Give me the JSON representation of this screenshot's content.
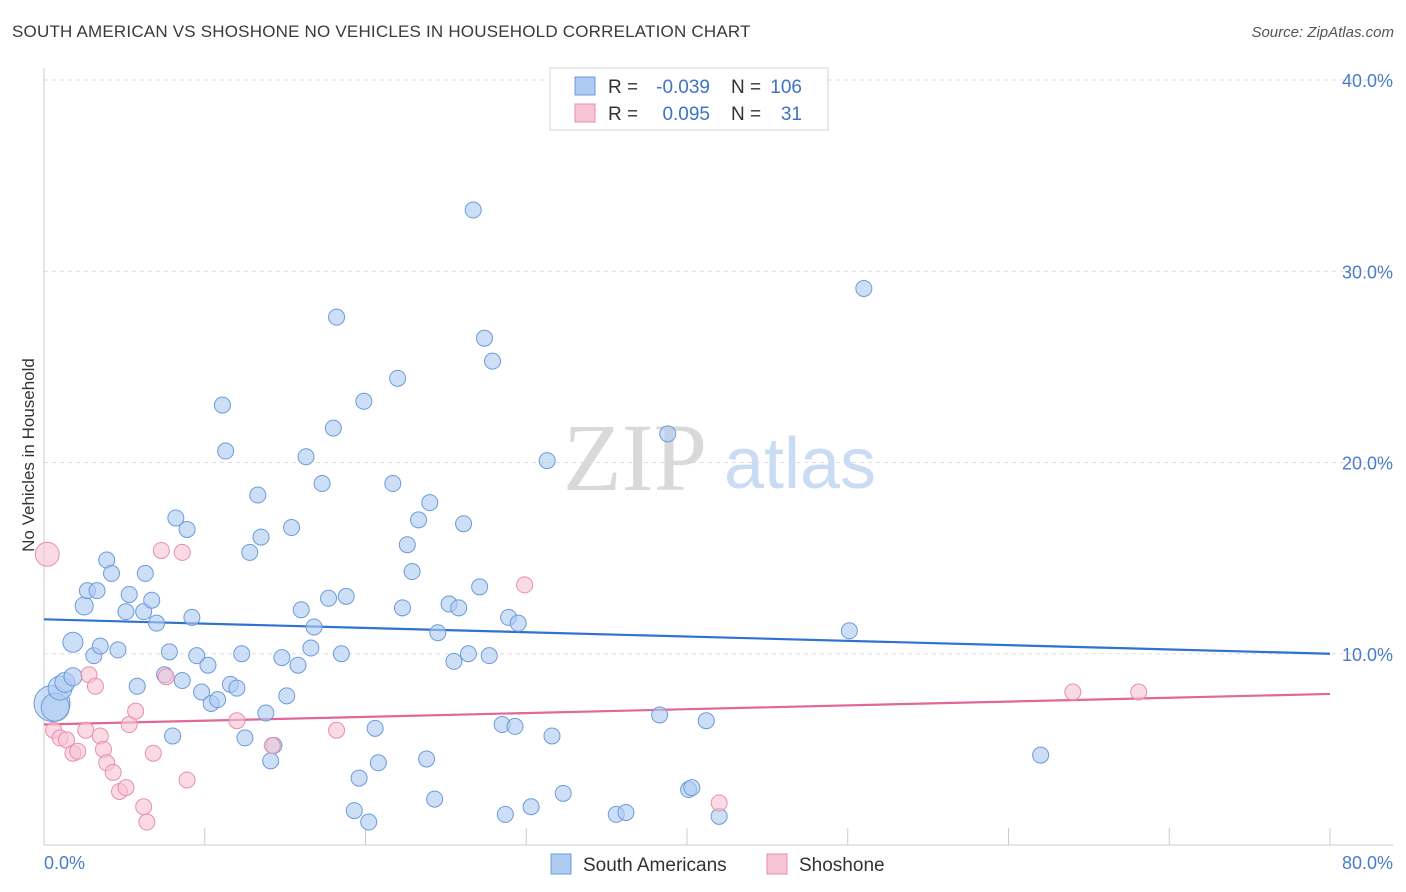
{
  "title": "SOUTH AMERICAN VS SHOSHONE NO VEHICLES IN HOUSEHOLD CORRELATION CHART",
  "source": "Source: ZipAtlas.com",
  "watermark": {
    "zip": "ZIP",
    "atlas": "atlas"
  },
  "colors": {
    "blue_fill": "#aecbf2",
    "blue_stroke": "#6c9bd9",
    "blue_line": "#2f72cf",
    "pink_fill": "#f7c4d4",
    "pink_stroke": "#e98eab",
    "pink_line": "#e0679a",
    "axis_text": "#4a7cc9"
  },
  "legend": {
    "r_label": "R =",
    "n_label": "N =",
    "series": [
      {
        "name": "South Americans",
        "r": "-0.039",
        "n": "106"
      },
      {
        "name": "Shoshone",
        "r": "0.095",
        "n": "31"
      }
    ]
  },
  "chart_data": {
    "type": "scatter",
    "title": "SOUTH AMERICAN VS SHOSHONE NO VEHICLES IN HOUSEHOLD CORRELATION CHART",
    "xlabel": "",
    "ylabel": "No Vehicles in Household",
    "xlim": [
      0,
      80
    ],
    "ylim": [
      0,
      40
    ],
    "x_tick_labels": [
      "0.0%",
      "80.0%"
    ],
    "y_tick_labels": [
      "10.0%",
      "20.0%",
      "30.0%",
      "40.0%"
    ],
    "y_ticks": [
      10,
      20,
      30,
      40
    ],
    "grid": true,
    "series": [
      {
        "name": "South Americans",
        "trend": {
          "x": [
            0,
            80
          ],
          "y": [
            11.8,
            10.0
          ]
        },
        "points": [
          [
            0.5,
            7.4,
            18
          ],
          [
            0.7,
            7.2,
            14
          ],
          [
            1.0,
            8.2,
            12
          ],
          [
            1.3,
            8.5,
            10
          ],
          [
            1.8,
            8.8,
            9
          ],
          [
            1.8,
            10.6,
            10
          ],
          [
            2.5,
            12.5,
            9
          ],
          [
            2.7,
            13.3,
            8
          ],
          [
            3.1,
            9.9,
            8
          ],
          [
            3.3,
            13.3,
            8
          ],
          [
            3.5,
            10.4,
            8
          ],
          [
            3.9,
            14.9,
            8
          ],
          [
            4.2,
            14.2,
            8
          ],
          [
            4.6,
            10.2,
            8
          ],
          [
            5.1,
            12.2,
            8
          ],
          [
            5.3,
            13.1,
            8
          ],
          [
            5.8,
            8.3,
            8
          ],
          [
            6.2,
            12.2,
            8
          ],
          [
            6.3,
            14.2,
            8
          ],
          [
            6.7,
            12.8,
            8
          ],
          [
            7.0,
            11.6,
            8
          ],
          [
            7.5,
            8.9,
            8
          ],
          [
            7.8,
            10.1,
            8
          ],
          [
            8.0,
            5.7,
            8
          ],
          [
            8.2,
            17.1,
            8
          ],
          [
            8.6,
            8.6,
            8
          ],
          [
            8.9,
            16.5,
            8
          ],
          [
            9.2,
            11.9,
            8
          ],
          [
            9.5,
            9.9,
            8
          ],
          [
            9.8,
            8.0,
            8
          ],
          [
            10.2,
            9.4,
            8
          ],
          [
            10.4,
            7.4,
            8
          ],
          [
            10.8,
            7.6,
            8
          ],
          [
            11.1,
            23.0,
            8
          ],
          [
            11.3,
            20.6,
            8
          ],
          [
            11.6,
            8.4,
            8
          ],
          [
            12.0,
            8.2,
            8
          ],
          [
            12.3,
            10.0,
            8
          ],
          [
            12.5,
            5.6,
            8
          ],
          [
            12.8,
            15.3,
            8
          ],
          [
            13.3,
            18.3,
            8
          ],
          [
            13.5,
            16.1,
            8
          ],
          [
            13.8,
            6.9,
            8
          ],
          [
            14.1,
            4.4,
            8
          ],
          [
            14.3,
            5.2,
            8
          ],
          [
            14.8,
            9.8,
            8
          ],
          [
            15.1,
            7.8,
            8
          ],
          [
            15.4,
            16.6,
            8
          ],
          [
            15.8,
            9.4,
            8
          ],
          [
            16.0,
            12.3,
            8
          ],
          [
            16.3,
            20.3,
            8
          ],
          [
            16.6,
            10.3,
            8
          ],
          [
            16.8,
            11.4,
            8
          ],
          [
            17.3,
            18.9,
            8
          ],
          [
            17.7,
            12.9,
            8
          ],
          [
            18.0,
            21.8,
            8
          ],
          [
            18.2,
            27.6,
            8
          ],
          [
            18.5,
            10.0,
            8
          ],
          [
            18.8,
            13.0,
            8
          ],
          [
            19.3,
            1.8,
            8
          ],
          [
            19.6,
            3.5,
            8
          ],
          [
            19.9,
            23.2,
            8
          ],
          [
            20.2,
            1.2,
            8
          ],
          [
            20.6,
            6.1,
            8
          ],
          [
            20.8,
            4.3,
            8
          ],
          [
            21.7,
            18.9,
            8
          ],
          [
            22.0,
            24.4,
            8
          ],
          [
            22.3,
            12.4,
            8
          ],
          [
            22.6,
            15.7,
            8
          ],
          [
            22.9,
            14.3,
            8
          ],
          [
            23.3,
            17.0,
            8
          ],
          [
            23.8,
            4.5,
            8
          ],
          [
            24.0,
            17.9,
            8
          ],
          [
            24.3,
            2.4,
            8
          ],
          [
            24.5,
            11.1,
            8
          ],
          [
            25.2,
            12.6,
            8
          ],
          [
            25.5,
            9.6,
            8
          ],
          [
            25.8,
            12.4,
            8
          ],
          [
            26.1,
            16.8,
            8
          ],
          [
            26.4,
            10.0,
            8
          ],
          [
            26.7,
            33.2,
            8
          ],
          [
            27.1,
            13.5,
            8
          ],
          [
            27.4,
            26.5,
            8
          ],
          [
            27.7,
            9.9,
            8
          ],
          [
            27.9,
            25.3,
            8
          ],
          [
            28.5,
            6.3,
            8
          ],
          [
            28.7,
            1.6,
            8
          ],
          [
            28.9,
            11.9,
            8
          ],
          [
            29.3,
            6.2,
            8
          ],
          [
            29.5,
            11.6,
            8
          ],
          [
            30.3,
            2.0,
            8
          ],
          [
            31.3,
            20.1,
            8
          ],
          [
            31.6,
            5.7,
            8
          ],
          [
            32.3,
            2.7,
            8
          ],
          [
            35.6,
            1.6,
            8
          ],
          [
            36.2,
            1.7,
            8
          ],
          [
            38.3,
            6.8,
            8
          ],
          [
            38.8,
            21.5,
            8
          ],
          [
            40.1,
            2.9,
            8
          ],
          [
            40.3,
            3.0,
            8
          ],
          [
            41.2,
            6.5,
            8
          ],
          [
            42.0,
            1.5,
            8
          ],
          [
            50.1,
            11.2,
            8
          ],
          [
            51.0,
            29.1,
            8
          ],
          [
            62.0,
            4.7,
            8
          ]
        ]
      },
      {
        "name": "Shoshone",
        "trend": {
          "x": [
            0,
            80
          ],
          "y": [
            6.3,
            7.9
          ]
        },
        "points": [
          [
            0.2,
            15.2,
            12
          ],
          [
            0.6,
            6.0,
            8
          ],
          [
            1.0,
            5.6,
            8
          ],
          [
            1.4,
            5.5,
            8
          ],
          [
            1.8,
            4.8,
            8
          ],
          [
            2.1,
            4.9,
            8
          ],
          [
            2.6,
            6.0,
            8
          ],
          [
            2.8,
            8.9,
            8
          ],
          [
            3.2,
            8.3,
            8
          ],
          [
            3.5,
            5.7,
            8
          ],
          [
            3.7,
            5.0,
            8
          ],
          [
            3.9,
            4.3,
            8
          ],
          [
            4.3,
            3.8,
            8
          ],
          [
            4.7,
            2.8,
            8
          ],
          [
            5.1,
            3.0,
            8
          ],
          [
            5.3,
            6.3,
            8
          ],
          [
            5.7,
            7.0,
            8
          ],
          [
            6.2,
            2.0,
            8
          ],
          [
            6.4,
            1.2,
            8
          ],
          [
            6.8,
            4.8,
            8
          ],
          [
            7.3,
            15.4,
            8
          ],
          [
            7.6,
            8.8,
            8
          ],
          [
            8.6,
            15.3,
            8
          ],
          [
            8.9,
            3.4,
            8
          ],
          [
            12.0,
            6.5,
            8
          ],
          [
            14.2,
            5.2,
            8
          ],
          [
            18.2,
            6.0,
            8
          ],
          [
            29.9,
            13.6,
            8
          ],
          [
            42.0,
            2.2,
            8
          ],
          [
            64.0,
            8.0,
            8
          ],
          [
            68.1,
            8.0,
            8
          ]
        ]
      }
    ]
  }
}
